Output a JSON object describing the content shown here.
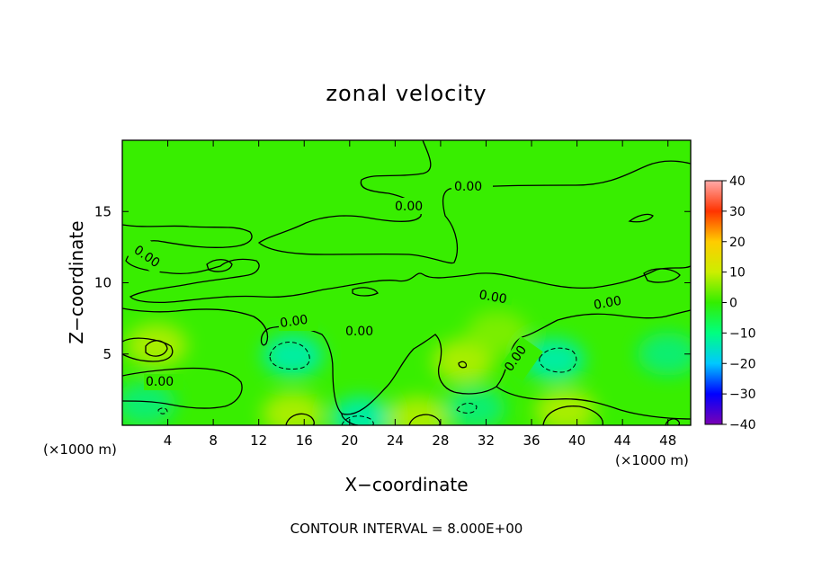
{
  "chart_data": {
    "type": "heatmap",
    "title": "zonal velocity",
    "xlabel": "X−coordinate",
    "ylabel": "Z−coordinate",
    "x_unit_label": "(×1000 m)",
    "y_unit_label": "(×1000 m)",
    "xlim": [
      0,
      50
    ],
    "ylim": [
      0,
      20
    ],
    "x_ticks": [
      4,
      8,
      12,
      16,
      20,
      24,
      28,
      32,
      36,
      40,
      44,
      48
    ],
    "y_ticks": [
      5,
      10,
      15
    ],
    "colorbar": {
      "min": -40,
      "max": 40,
      "ticks": [
        40,
        30,
        20,
        10,
        0,
        -10,
        -20,
        -30,
        -40
      ],
      "colormap": [
        "#7a00b4",
        "#0000ff",
        "#00c8ff",
        "#00ff80",
        "#33ee00",
        "#ccee00",
        "#ffcc00",
        "#ff3300",
        "#ffaaaa"
      ]
    },
    "contour_interval_text": "CONTOUR INTERVAL = 8.000E+00",
    "contour_labels": [
      "0.00",
      "0.00",
      "0.00",
      "0.00",
      "0.00",
      "0.00",
      "0.00",
      "0.00",
      "0.00"
    ],
    "background_value": 0,
    "field_blobs": [
      {
        "x": 3,
        "z": 5.6,
        "value": 8
      },
      {
        "x": 15,
        "z": 4.9,
        "value": -10
      },
      {
        "x": 21,
        "z": 0.5,
        "value": -8
      },
      {
        "x": 26,
        "z": 0.5,
        "value": 8
      },
      {
        "x": 30,
        "z": 4.5,
        "value": 8
      },
      {
        "x": 31,
        "z": 1.2,
        "value": -6
      },
      {
        "x": 38,
        "z": 4.6,
        "value": -10
      },
      {
        "x": 39,
        "z": 1.0,
        "value": 10
      },
      {
        "x": 15,
        "z": 0.8,
        "value": 8
      },
      {
        "x": 48,
        "z": 5.0,
        "value": -6
      },
      {
        "x": 2,
        "z": 1.5,
        "value": -5
      },
      {
        "x": 33,
        "z": 6.5,
        "value": 6
      }
    ]
  }
}
